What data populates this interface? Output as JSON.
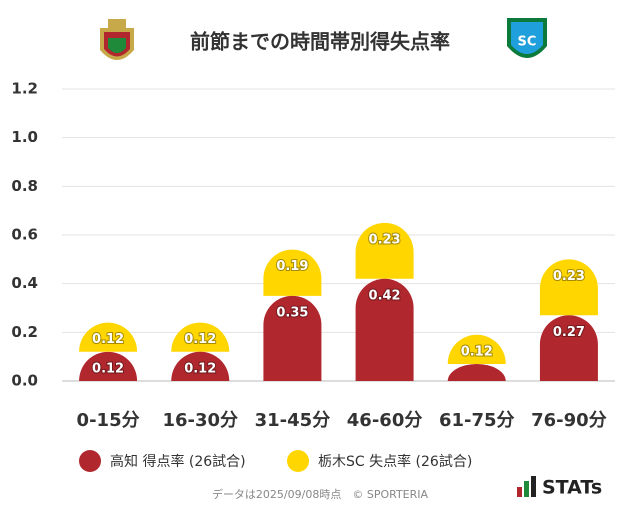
{
  "chart_data": {
    "type": "stacked_bar",
    "title": "前節までの時間帯別得失点率",
    "categories": [
      "0-15分",
      "16-30分",
      "31-45分",
      "46-60分",
      "61-75分",
      "76-90分"
    ],
    "series": [
      {
        "name": "高知 得点率 (26試合)",
        "color": "#b0272d",
        "values": [
          0.12,
          0.12,
          0.35,
          0.42,
          0.07,
          0.27
        ],
        "value_labels": [
          "0.12",
          "0.12",
          "0.35",
          "0.42",
          null,
          "0.27"
        ]
      },
      {
        "name": "栃木SC 失点率 (26試合)",
        "color": "#ffd600",
        "values": [
          0.12,
          0.12,
          0.19,
          0.23,
          0.12,
          0.23
        ]
      }
    ],
    "ylim": [
      0,
      1.2
    ],
    "yticks": [
      {
        "value": 0,
        "label": "0.0"
      },
      0.2,
      0.4,
      0.6,
      0.8,
      {
        "value": 1,
        "label": "1.0"
      },
      1.2
    ],
    "grid": true,
    "footnote": "データは2025/09/08時点　© SPORTERIA",
    "brand": "STATs"
  }
}
